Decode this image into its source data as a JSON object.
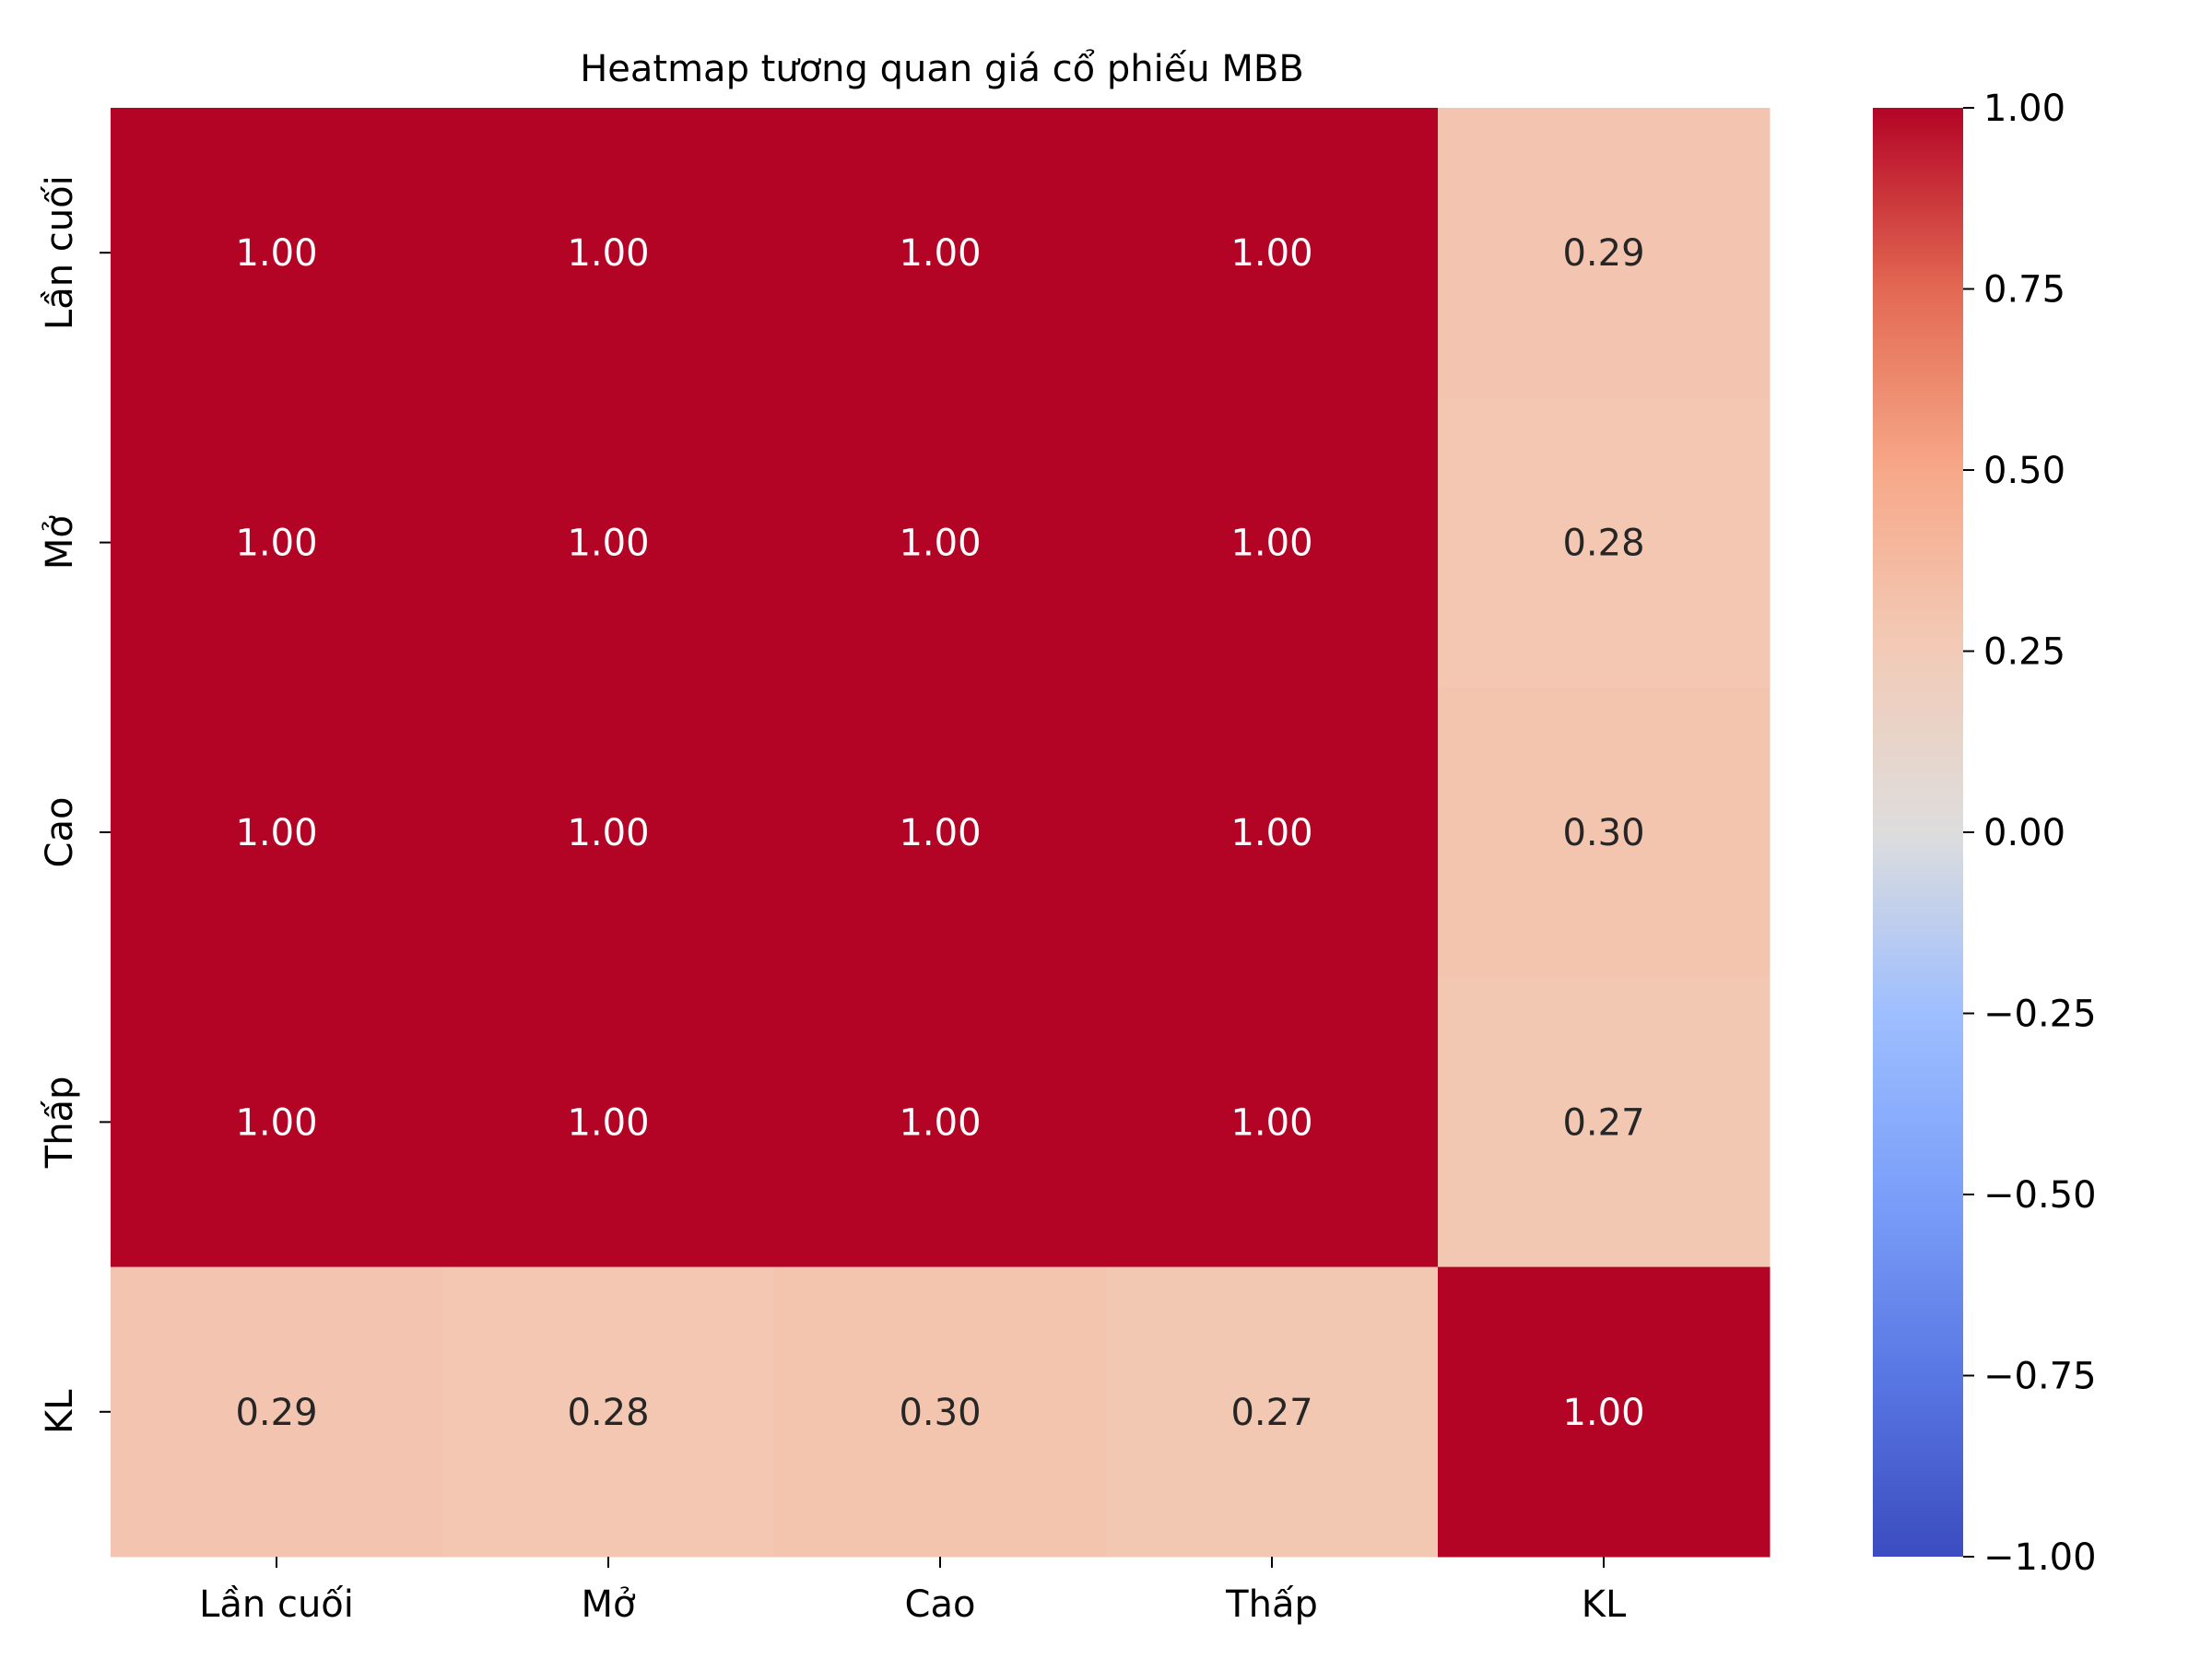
{
  "chart_data": {
    "type": "heatmap",
    "title": "Heatmap tương quan giá cổ phiếu MBB",
    "x_labels": [
      "Lần cuối",
      "Mở",
      "Cao",
      "Thấp",
      "KL"
    ],
    "y_labels": [
      "Lần cuối",
      "Mở",
      "Cao",
      "Thấp",
      "KL"
    ],
    "values": [
      [
        1.0,
        1.0,
        1.0,
        1.0,
        0.29
      ],
      [
        1.0,
        1.0,
        1.0,
        1.0,
        0.28
      ],
      [
        1.0,
        1.0,
        1.0,
        1.0,
        0.3
      ],
      [
        1.0,
        1.0,
        1.0,
        1.0,
        0.27
      ],
      [
        0.29,
        0.28,
        0.3,
        0.27,
        1.0
      ]
    ],
    "cell_labels": [
      [
        "1.00",
        "1.00",
        "1.00",
        "1.00",
        "0.29"
      ],
      [
        "1.00",
        "1.00",
        "1.00",
        "1.00",
        "0.28"
      ],
      [
        "1.00",
        "1.00",
        "1.00",
        "1.00",
        "0.30"
      ],
      [
        "1.00",
        "1.00",
        "1.00",
        "1.00",
        "0.27"
      ],
      [
        "0.29",
        "0.28",
        "0.30",
        "0.27",
        "1.00"
      ]
    ],
    "colormap": "coolwarm",
    "vmin": -1.0,
    "vmax": 1.0,
    "colorbar_ticks": [
      1.0,
      0.75,
      0.5,
      0.25,
      0.0,
      -0.25,
      -0.5,
      -0.75,
      -1.0
    ],
    "colorbar_tick_labels": [
      "1.00",
      "0.75",
      "0.50",
      "0.25",
      "0.00",
      "−0.25",
      "−0.50",
      "−0.75",
      "−1.00"
    ],
    "colors": {
      "high": "#b40426",
      "mid": "#dddddd",
      "low": "#3b4cc0",
      "dark_text": "#262626",
      "light_text": "#ffffff"
    }
  }
}
